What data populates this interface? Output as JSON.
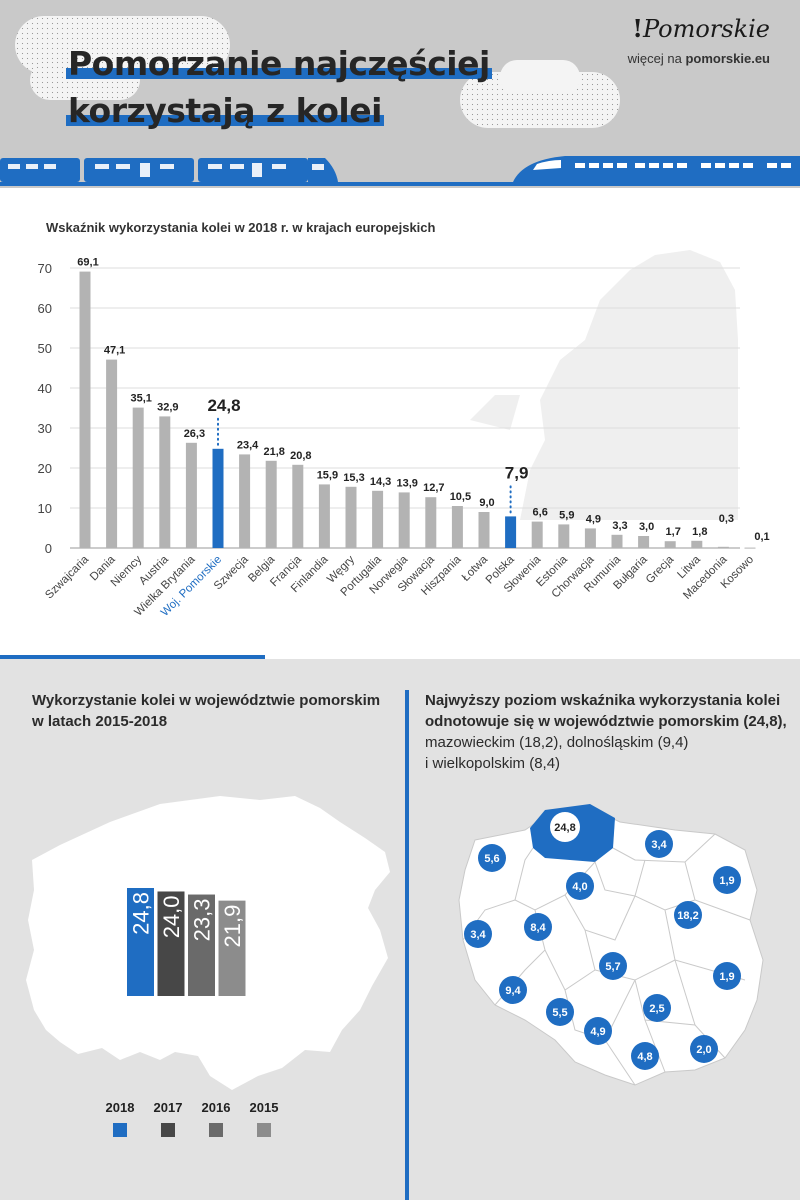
{
  "header": {
    "title_line1": "Pomorzanie najczęściej",
    "title_line2": "korzystają z kolei",
    "logo_text": "Pomorskie",
    "logo_sub_prefix": "więcej na",
    "logo_sub_site": "pomorskie.eu"
  },
  "colors": {
    "blue": "#1f6dc2",
    "gray_bar": "#b3b3b3"
  },
  "chart_data": [
    {
      "type": "bar",
      "title": "Wskaźnik wykorzystania kolei w 2018 r. w krajach europejskich",
      "ylim": [
        0,
        70
      ],
      "yticks": [
        0,
        10,
        20,
        30,
        40,
        50,
        60,
        70
      ],
      "grid": true,
      "categories": [
        "Szwajcaria",
        "Dania",
        "Niemcy",
        "Austria",
        "Wielka Brytania",
        "Woj. Pomorskie",
        "Szwecja",
        "Belgia",
        "Francja",
        "Finlandia",
        "Węgry",
        "Portugalia",
        "Norwegia",
        "Słowacja",
        "Hiszpania",
        "Łotwa",
        "Polska",
        "Słowenia",
        "Estonia",
        "Chorwacja",
        "Rumunia",
        "Bułgaria",
        "Grecja",
        "Litwa",
        "Macedonia",
        "Kosowo"
      ],
      "values": [
        69.1,
        47.1,
        35.1,
        32.9,
        26.3,
        24.8,
        23.4,
        21.8,
        20.8,
        15.9,
        15.3,
        14.3,
        13.9,
        12.7,
        10.5,
        9.0,
        7.9,
        6.6,
        5.9,
        4.9,
        3.3,
        3.0,
        1.7,
        1.8,
        0.3,
        0.1
      ],
      "value_labels": [
        "69,1",
        "47,1",
        "35,1",
        "32,9",
        "26,3",
        "24,8",
        "23,4",
        "21,8",
        "20,8",
        "15,9",
        "15,3",
        "14,3",
        "13,9",
        "12,7",
        "10,5",
        "9,0",
        "7,9",
        "6,6",
        "5,9",
        "4,9",
        "3,3",
        "3,0",
        "1,7",
        "1,8",
        "0,3",
        "0,1"
      ],
      "highlighted": [
        "Woj. Pomorskie",
        "Polska"
      ]
    },
    {
      "type": "bar",
      "title": "Wykorzystanie kolei w województwie pomorskim w latach 2015-2018",
      "categories": [
        "2018",
        "2017",
        "2016",
        "2015"
      ],
      "values": [
        24.8,
        24.0,
        23.3,
        21.9
      ],
      "value_labels": [
        "24,8",
        "24,0",
        "23,3",
        "21,9"
      ],
      "colors": [
        "#1f6dc2",
        "#474747",
        "#6a6a6a",
        "#8c8c8c"
      ]
    }
  ],
  "section_left": {
    "title_line1": "Wykorzystanie kolei w województwie pomorskim",
    "title_line2": "w latach 2015-2018"
  },
  "section_right": {
    "title_line1": "Najwyższy poziom wskaźnika wykorzystania kolei",
    "title_line2": "odnotowuje się w województwie pomorskim (24,8),",
    "text_line3": "mazowieckim (18,2), dolnośląskim (9,4)",
    "text_line4": "i wielkopolskim (8,4)"
  },
  "map_regions": [
    "24,8",
    "3,4",
    "5,6",
    "4,0",
    "1,9",
    "3,4",
    "8,4",
    "18,2",
    "5,7",
    "1,9",
    "9,4",
    "5,5",
    "2,5",
    "4,9",
    "4,8",
    "2,0"
  ]
}
